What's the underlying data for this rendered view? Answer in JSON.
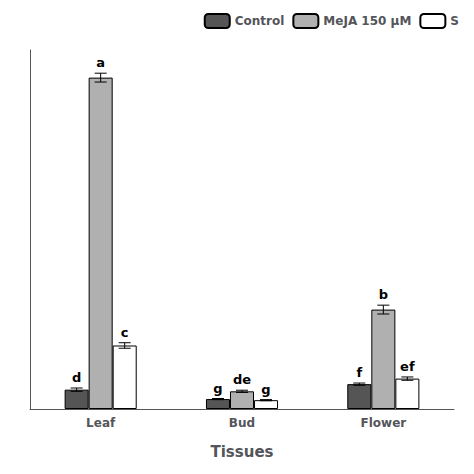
{
  "chart_data": {
    "type": "bar",
    "xlabel": "Tissues",
    "categories": [
      "Leaf",
      "Bud",
      "Flower"
    ],
    "series": [
      {
        "name": "Control",
        "color": "#555555",
        "values": [
          3.5,
          1.8,
          4.5
        ],
        "errors": [
          0.3,
          0.1,
          0.2
        ],
        "annotations": [
          "d",
          "g",
          "f"
        ]
      },
      {
        "name": "MeJA 150 μM",
        "color": "#b0b0b0",
        "values": [
          60.0,
          3.2,
          18.0
        ],
        "errors": [
          0.8,
          0.2,
          0.8
        ],
        "annotations": [
          "a",
          "de",
          "b"
        ]
      },
      {
        "name": "S",
        "color": "#ffffff",
        "values": [
          11.5,
          1.6,
          5.5
        ],
        "errors": [
          0.5,
          0.1,
          0.3
        ],
        "annotations": [
          "c",
          "g",
          "ef"
        ]
      }
    ],
    "ylim": [
      0,
      65
    ],
    "tick_labels": "x",
    "grid": false,
    "legend": "upper right"
  }
}
